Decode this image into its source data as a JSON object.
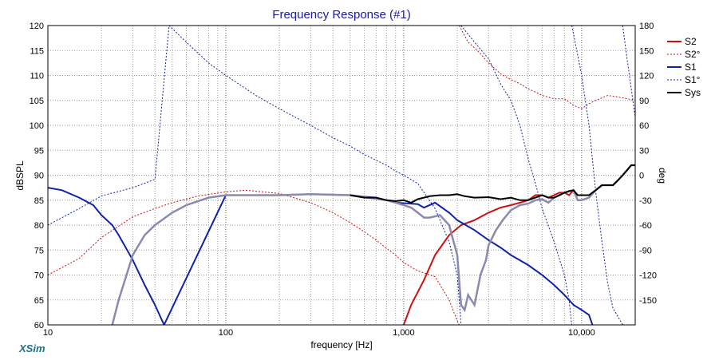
{
  "chart_data": {
    "type": "line",
    "title": "Frequency Response (#1)",
    "xlabel": "frequency [Hz]",
    "ylabel": "dBSPL",
    "y2label": "deg",
    "x_scale": "log",
    "xlim": [
      10,
      20000
    ],
    "ylim": [
      60,
      120
    ],
    "y2lim": [
      -180,
      180
    ],
    "x_tick_labels": [
      {
        "value": 10,
        "label": "10"
      },
      {
        "value": 100,
        "label": "100"
      },
      {
        "value": 1000,
        "label": "1,000"
      },
      {
        "value": 10000,
        "label": "10,000"
      }
    ],
    "y_ticks": [
      60,
      65,
      70,
      75,
      80,
      85,
      90,
      95,
      100,
      105,
      110,
      115,
      120
    ],
    "y2_ticks": [
      -150,
      -120,
      -90,
      -60,
      -30,
      0,
      30,
      60,
      90,
      120,
      150,
      180
    ],
    "grid": true,
    "legend_position": "right",
    "brand": "XSim",
    "series": [
      {
        "name": "S2",
        "color": "#cc1111",
        "style": "solid",
        "axis": "left",
        "points": [
          [
            1000,
            60
          ],
          [
            1100,
            64
          ],
          [
            1300,
            69
          ],
          [
            1500,
            74
          ],
          [
            1800,
            78
          ],
          [
            2100,
            80
          ],
          [
            2500,
            81
          ],
          [
            3000,
            82.5
          ],
          [
            3500,
            83.5
          ],
          [
            4000,
            84
          ],
          [
            4500,
            84.5
          ],
          [
            5000,
            85
          ],
          [
            5500,
            86
          ],
          [
            6000,
            86
          ],
          [
            6500,
            85.5
          ],
          [
            7000,
            86
          ],
          [
            7500,
            86.5
          ],
          [
            8000,
            86.5
          ],
          [
            8500,
            86
          ],
          [
            9000,
            87
          ],
          [
            9500,
            86
          ],
          [
            10000,
            86
          ],
          [
            11000,
            86
          ],
          [
            12000,
            87
          ],
          [
            13000,
            88
          ],
          [
            14000,
            88
          ],
          [
            15000,
            88
          ],
          [
            16000,
            89
          ],
          [
            17000,
            90
          ],
          [
            18000,
            91
          ],
          [
            19000,
            92
          ],
          [
            20000,
            92
          ]
        ]
      },
      {
        "name": "S2°",
        "color": "#cc1111",
        "style": "dotted",
        "axis": "right",
        "points": [
          [
            10,
            -120
          ],
          [
            15,
            -100
          ],
          [
            20,
            -75
          ],
          [
            30,
            -50
          ],
          [
            40,
            -40
          ],
          [
            50,
            -33
          ],
          [
            70,
            -25
          ],
          [
            100,
            -20
          ],
          [
            130,
            -18
          ],
          [
            200,
            -22
          ],
          [
            300,
            -33
          ],
          [
            400,
            -45
          ],
          [
            500,
            -57
          ],
          [
            600,
            -68
          ],
          [
            700,
            -78
          ],
          [
            800,
            -88
          ],
          [
            900,
            -96
          ],
          [
            1000,
            -105
          ],
          [
            1200,
            -115
          ],
          [
            1500,
            -122
          ],
          [
            1800,
            -150
          ],
          [
            2000,
            -175
          ],
          [
            2050,
            180
          ],
          [
            2300,
            160
          ],
          [
            2600,
            150
          ],
          [
            3000,
            135
          ],
          [
            3500,
            122
          ],
          [
            4000,
            115
          ],
          [
            4500,
            110
          ],
          [
            5000,
            104
          ],
          [
            5500,
            100
          ],
          [
            6000,
            96
          ],
          [
            7000,
            92
          ],
          [
            8000,
            92
          ],
          [
            9000,
            84
          ],
          [
            10000,
            80
          ],
          [
            11000,
            86
          ],
          [
            12000,
            90
          ],
          [
            14000,
            96
          ],
          [
            16000,
            94
          ],
          [
            18000,
            92
          ],
          [
            20000,
            90
          ]
        ]
      },
      {
        "name": "S1",
        "color": "#1122aa",
        "style": "solid",
        "axis": "left",
        "points": [
          [
            10,
            87.5
          ],
          [
            12,
            87
          ],
          [
            15,
            85.5
          ],
          [
            18,
            84
          ],
          [
            20,
            82
          ],
          [
            23,
            80
          ],
          [
            25,
            78
          ],
          [
            30,
            73
          ],
          [
            35,
            68
          ],
          [
            40,
            64
          ],
          [
            45,
            60
          ],
          [
            100,
            86
          ],
          [
            200,
            86
          ],
          [
            300,
            86.2
          ],
          [
            500,
            86
          ],
          [
            600,
            85.7
          ],
          [
            700,
            85.5
          ],
          [
            800,
            85
          ],
          [
            900,
            84.5
          ],
          [
            1000,
            84.4
          ],
          [
            1200,
            84.2
          ],
          [
            1300,
            83.5
          ],
          [
            1500,
            84.5
          ],
          [
            1800,
            82.5
          ],
          [
            2000,
            81
          ],
          [
            2500,
            79
          ],
          [
            3000,
            77
          ],
          [
            3500,
            75.5
          ],
          [
            4000,
            74
          ],
          [
            5000,
            72
          ],
          [
            6000,
            70
          ],
          [
            7000,
            68
          ],
          [
            8000,
            66
          ],
          [
            9000,
            64
          ],
          [
            10000,
            63
          ],
          [
            11000,
            62
          ],
          [
            11500,
            60
          ]
        ]
      },
      {
        "name": "S1°",
        "color": "#1122aa",
        "style": "dotted",
        "axis": "right",
        "points": [
          [
            10,
            -60
          ],
          [
            15,
            -40
          ],
          [
            20,
            -25
          ],
          [
            30,
            -15
          ],
          [
            40,
            -5
          ],
          [
            48,
            180
          ],
          [
            60,
            160
          ],
          [
            80,
            135
          ],
          [
            100,
            120
          ],
          [
            150,
            95
          ],
          [
            200,
            80
          ],
          [
            300,
            60
          ],
          [
            400,
            45
          ],
          [
            500,
            35
          ],
          [
            600,
            25
          ],
          [
            700,
            18
          ],
          [
            800,
            12
          ],
          [
            900,
            5
          ],
          [
            1000,
            0
          ],
          [
            1200,
            -10
          ],
          [
            1500,
            -40
          ],
          [
            1800,
            -80
          ],
          [
            2000,
            -120
          ],
          [
            2100,
            180
          ],
          [
            2500,
            160
          ],
          [
            3000,
            140
          ],
          [
            3500,
            110
          ],
          [
            4000,
            90
          ],
          [
            4500,
            60
          ],
          [
            5000,
            20
          ],
          [
            5500,
            -10
          ],
          [
            6000,
            -40
          ],
          [
            7000,
            -80
          ],
          [
            8000,
            -120
          ],
          [
            8500,
            -150
          ],
          [
            8800,
            180
          ],
          [
            9000,
            170
          ],
          [
            10000,
            120
          ],
          [
            11000,
            60
          ],
          [
            12000,
            -20
          ],
          [
            13000,
            -80
          ],
          [
            14000,
            -130
          ],
          [
            15000,
            -160
          ],
          [
            16000,
            -170
          ],
          [
            17000,
            180
          ],
          [
            18000,
            140
          ],
          [
            20000,
            70
          ]
        ]
      },
      {
        "name": "Sys",
        "color": "#000000",
        "style": "solid",
        "axis": "left",
        "points": [
          [
            500,
            86
          ],
          [
            600,
            85.5
          ],
          [
            700,
            85.5
          ],
          [
            800,
            85
          ],
          [
            900,
            84.8
          ],
          [
            1000,
            85
          ],
          [
            1100,
            84.5
          ],
          [
            1200,
            85.2
          ],
          [
            1400,
            85.8
          ],
          [
            1600,
            86
          ],
          [
            1800,
            86
          ],
          [
            2000,
            86.2
          ],
          [
            2200,
            85.8
          ],
          [
            2500,
            85.5
          ],
          [
            3000,
            85.6
          ],
          [
            3500,
            85.2
          ],
          [
            4000,
            85.5
          ],
          [
            4500,
            85
          ],
          [
            5000,
            85
          ],
          [
            5500,
            85.5
          ],
          [
            6000,
            86
          ],
          [
            6500,
            85.5
          ],
          [
            7000,
            85.5
          ],
          [
            7500,
            86
          ],
          [
            8000,
            86.5
          ],
          [
            8500,
            86.8
          ],
          [
            9000,
            87
          ],
          [
            9500,
            86
          ],
          [
            10000,
            86
          ],
          [
            11000,
            86
          ],
          [
            12000,
            87
          ],
          [
            13000,
            88
          ],
          [
            14000,
            88
          ],
          [
            15000,
            88
          ],
          [
            16000,
            89
          ],
          [
            17000,
            90
          ],
          [
            18000,
            91
          ],
          [
            19000,
            92
          ],
          [
            20000,
            92
          ]
        ]
      },
      {
        "name": "",
        "color": "#8a8ab0",
        "style": "solid",
        "axis": "left",
        "width": 2.5,
        "points": [
          [
            23,
            60
          ],
          [
            25,
            65
          ],
          [
            30,
            74
          ],
          [
            35,
            78
          ],
          [
            40,
            80
          ],
          [
            50,
            82.5
          ],
          [
            60,
            84
          ],
          [
            80,
            85.5
          ],
          [
            100,
            86
          ],
          [
            200,
            86
          ],
          [
            300,
            86.2
          ],
          [
            500,
            86
          ],
          [
            600,
            85.6
          ],
          [
            700,
            85.3
          ],
          [
            800,
            85
          ],
          [
            900,
            84.5
          ],
          [
            1000,
            84
          ],
          [
            1100,
            83.5
          ],
          [
            1200,
            82.5
          ],
          [
            1300,
            81.5
          ],
          [
            1400,
            81.5
          ],
          [
            1600,
            82
          ],
          [
            1800,
            80
          ],
          [
            2000,
            74
          ],
          [
            2100,
            64
          ],
          [
            2200,
            63
          ],
          [
            2300,
            66
          ],
          [
            2500,
            64
          ],
          [
            2700,
            70
          ],
          [
            2900,
            73
          ],
          [
            3000,
            76
          ],
          [
            3300,
            79
          ],
          [
            3600,
            81
          ],
          [
            4000,
            83
          ],
          [
            4500,
            84
          ],
          [
            5000,
            84.3
          ],
          [
            5500,
            85
          ],
          [
            6000,
            85.2
          ],
          [
            6500,
            84.5
          ],
          [
            7000,
            85.5
          ],
          [
            7500,
            86
          ],
          [
            8000,
            86.5
          ],
          [
            8500,
            86.8
          ],
          [
            9000,
            87
          ],
          [
            9500,
            85
          ],
          [
            10000,
            85
          ],
          [
            11000,
            85.5
          ],
          [
            12000,
            87
          ],
          [
            13000,
            88
          ],
          [
            14000,
            88
          ],
          [
            15000,
            88
          ],
          [
            16000,
            89
          ],
          [
            17000,
            90
          ],
          [
            18000,
            91
          ],
          [
            19000,
            92
          ],
          [
            20000,
            92
          ]
        ]
      }
    ]
  }
}
